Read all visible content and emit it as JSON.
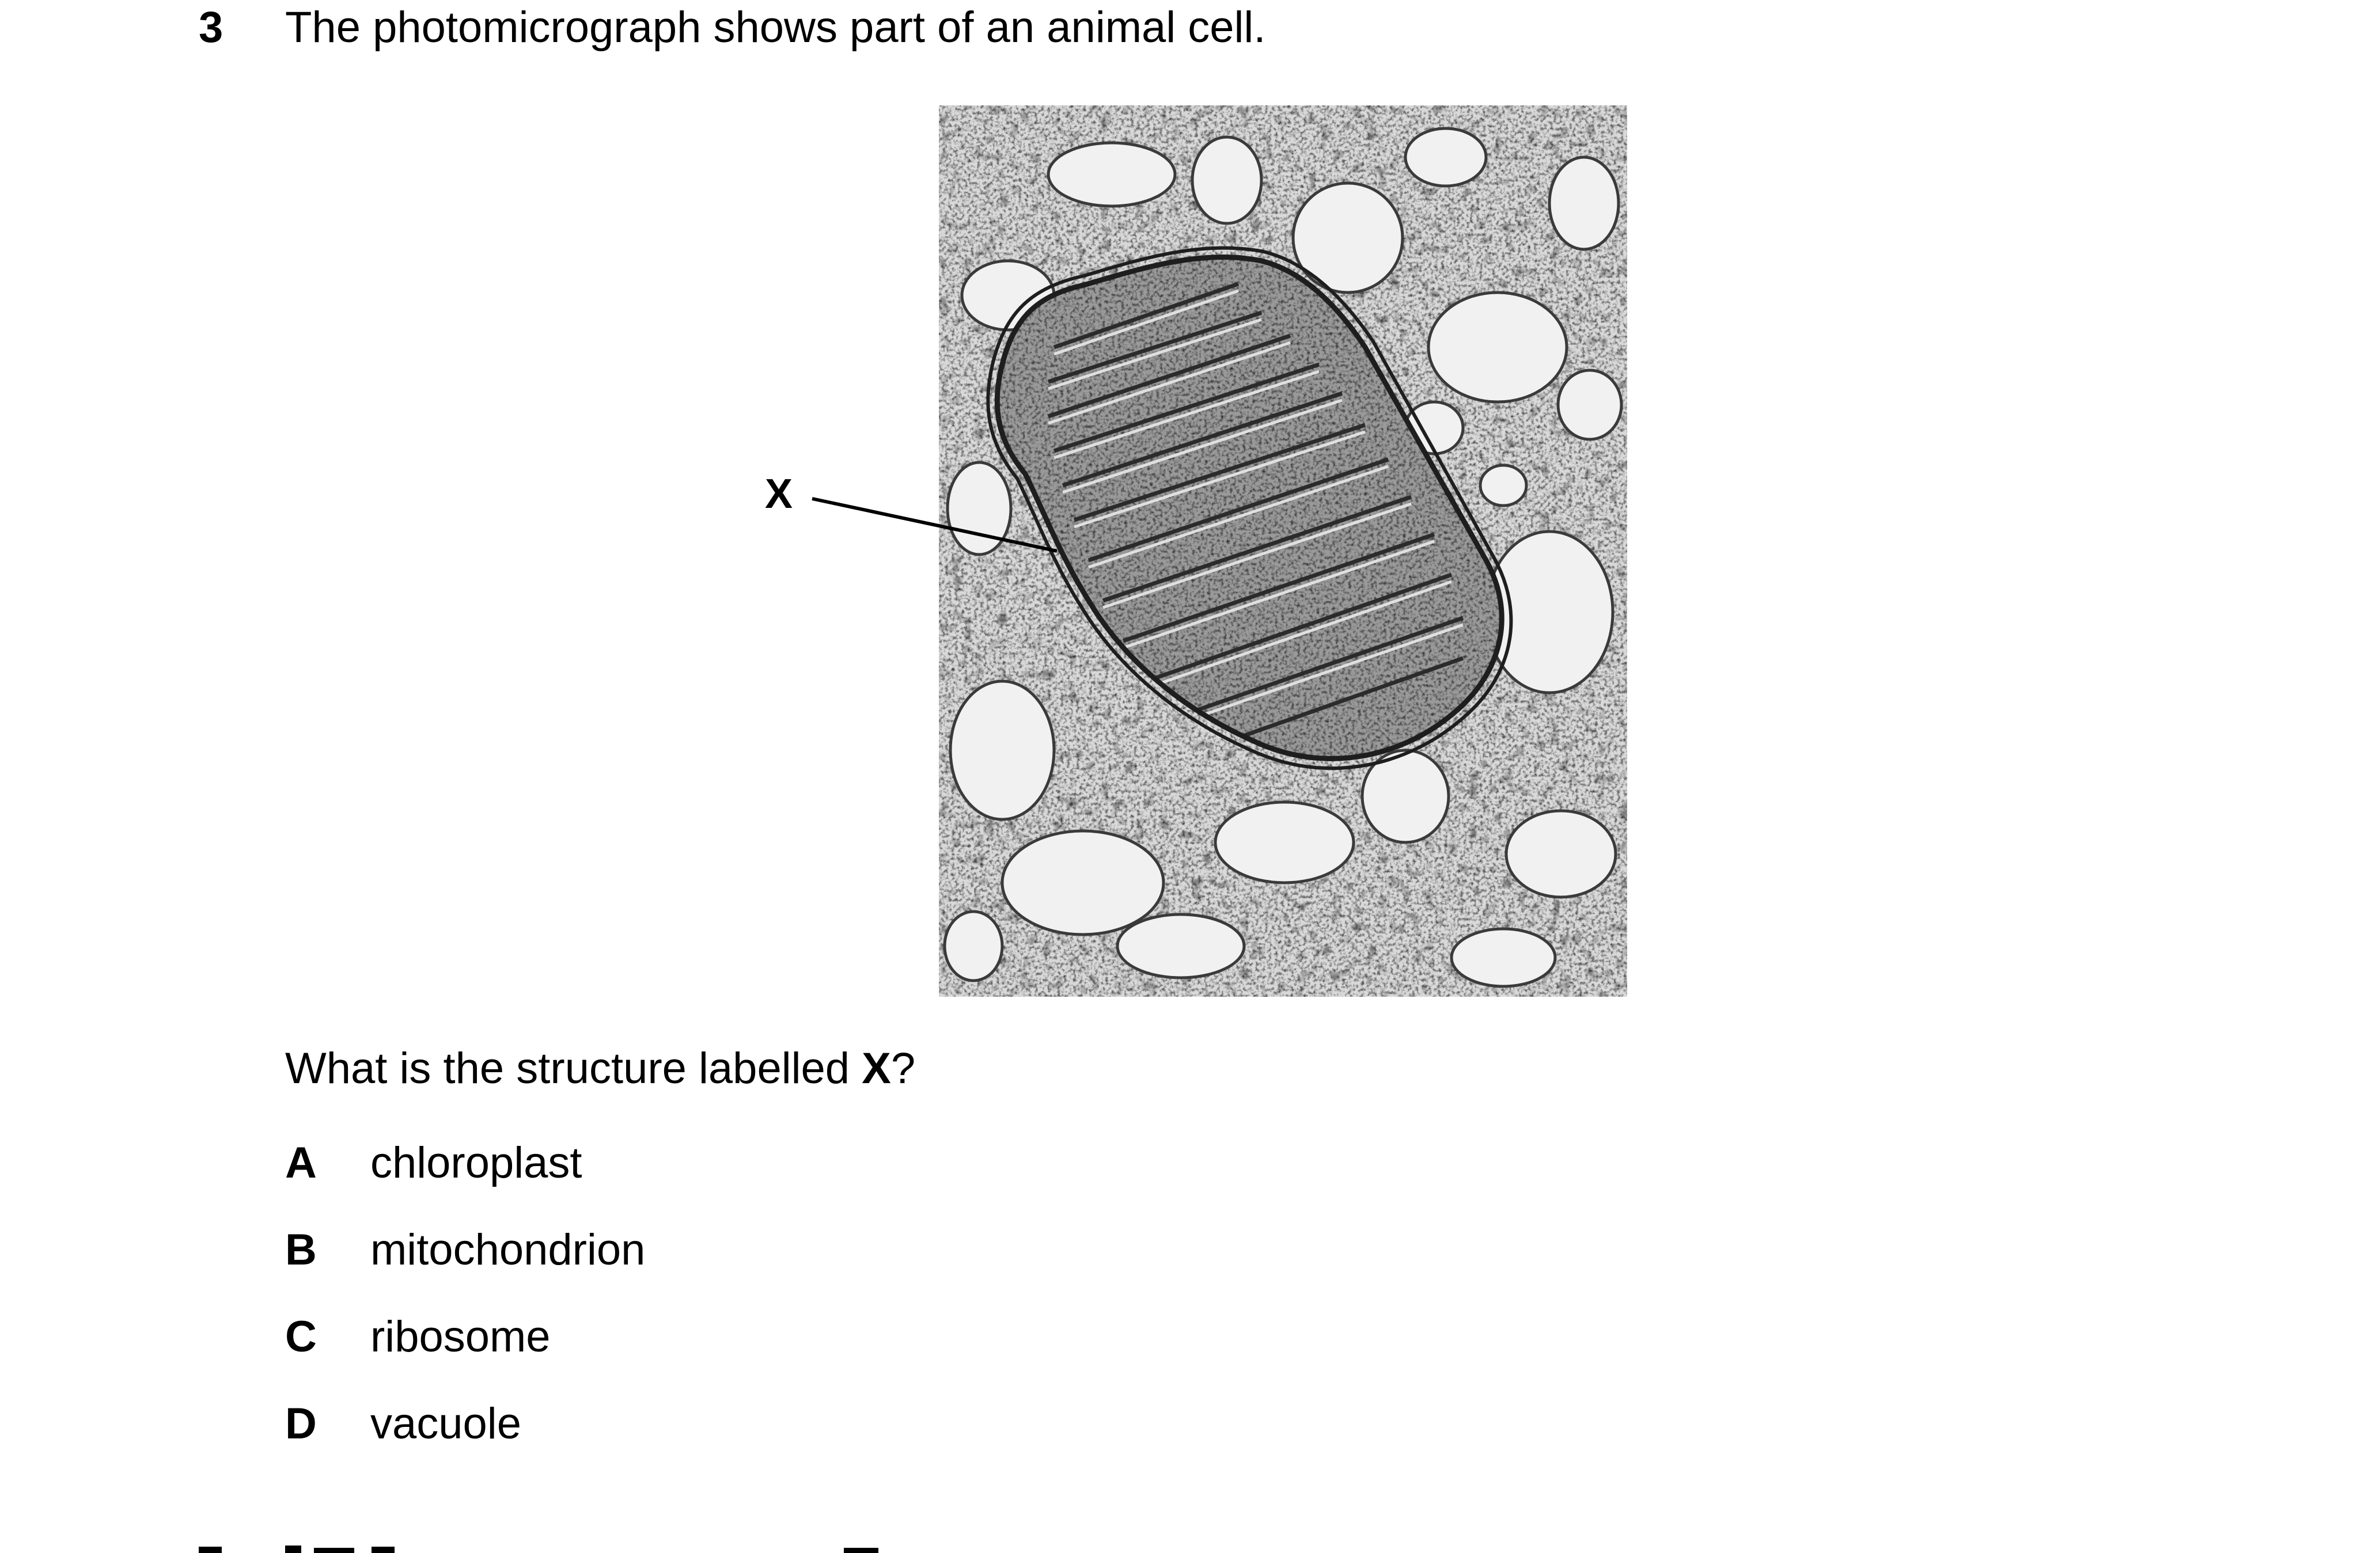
{
  "question": {
    "number": "3",
    "stem": "The photomicrograph shows part of an animal cell.",
    "prompt_before": "What is the structure labelled ",
    "prompt_bold": "X",
    "prompt_after": "?"
  },
  "figure": {
    "label": "X"
  },
  "options": [
    {
      "letter": "A",
      "text": "chloroplast"
    },
    {
      "letter": "B",
      "text": "mitochondrion"
    },
    {
      "letter": "C",
      "text": "ribosome"
    },
    {
      "letter": "D",
      "text": "vacuole"
    }
  ]
}
